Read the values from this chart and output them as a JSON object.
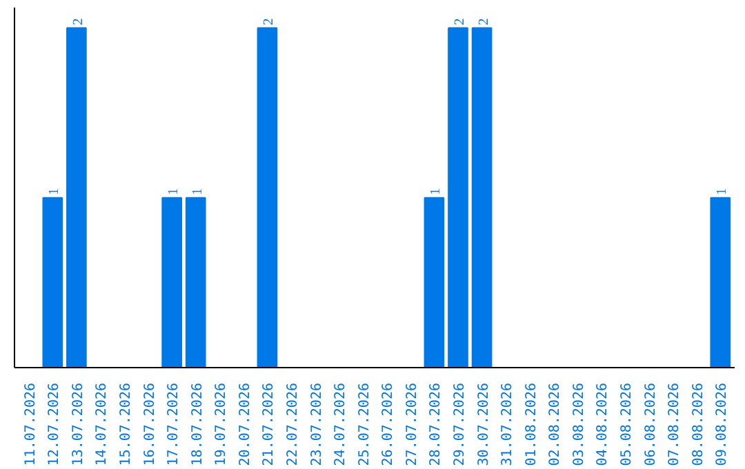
{
  "chart_data": {
    "type": "bar",
    "categories": [
      "11.07.2026",
      "12.07.2026",
      "13.07.2026",
      "14.07.2026",
      "15.07.2026",
      "16.07.2026",
      "17.07.2026",
      "18.07.2026",
      "19.07.2026",
      "20.07.2026",
      "21.07.2026",
      "22.07.2026",
      "23.07.2026",
      "24.07.2026",
      "25.07.2026",
      "26.07.2026",
      "27.07.2026",
      "28.07.2026",
      "29.07.2026",
      "30.07.2026",
      "31.07.2026",
      "01.08.2026",
      "02.08.2026",
      "03.08.2026",
      "04.08.2026",
      "05.08.2026",
      "06.08.2026",
      "07.08.2026",
      "08.08.2026",
      "09.08.2026"
    ],
    "values": [
      0,
      1,
      2,
      0,
      0,
      0,
      1,
      1,
      0,
      0,
      2,
      0,
      0,
      0,
      0,
      0,
      0,
      1,
      2,
      2,
      0,
      0,
      0,
      0,
      0,
      0,
      0,
      0,
      0,
      1
    ],
    "value_labels": [
      null,
      "1",
      "2",
      null,
      null,
      null,
      "1",
      "1",
      null,
      null,
      "2",
      null,
      null,
      null,
      null,
      null,
      null,
      "1",
      "2",
      "2",
      null,
      null,
      null,
      null,
      null,
      null,
      null,
      null,
      null,
      "1"
    ],
    "color": "#0078e7",
    "tick_labels": "x",
    "grid": false
  }
}
